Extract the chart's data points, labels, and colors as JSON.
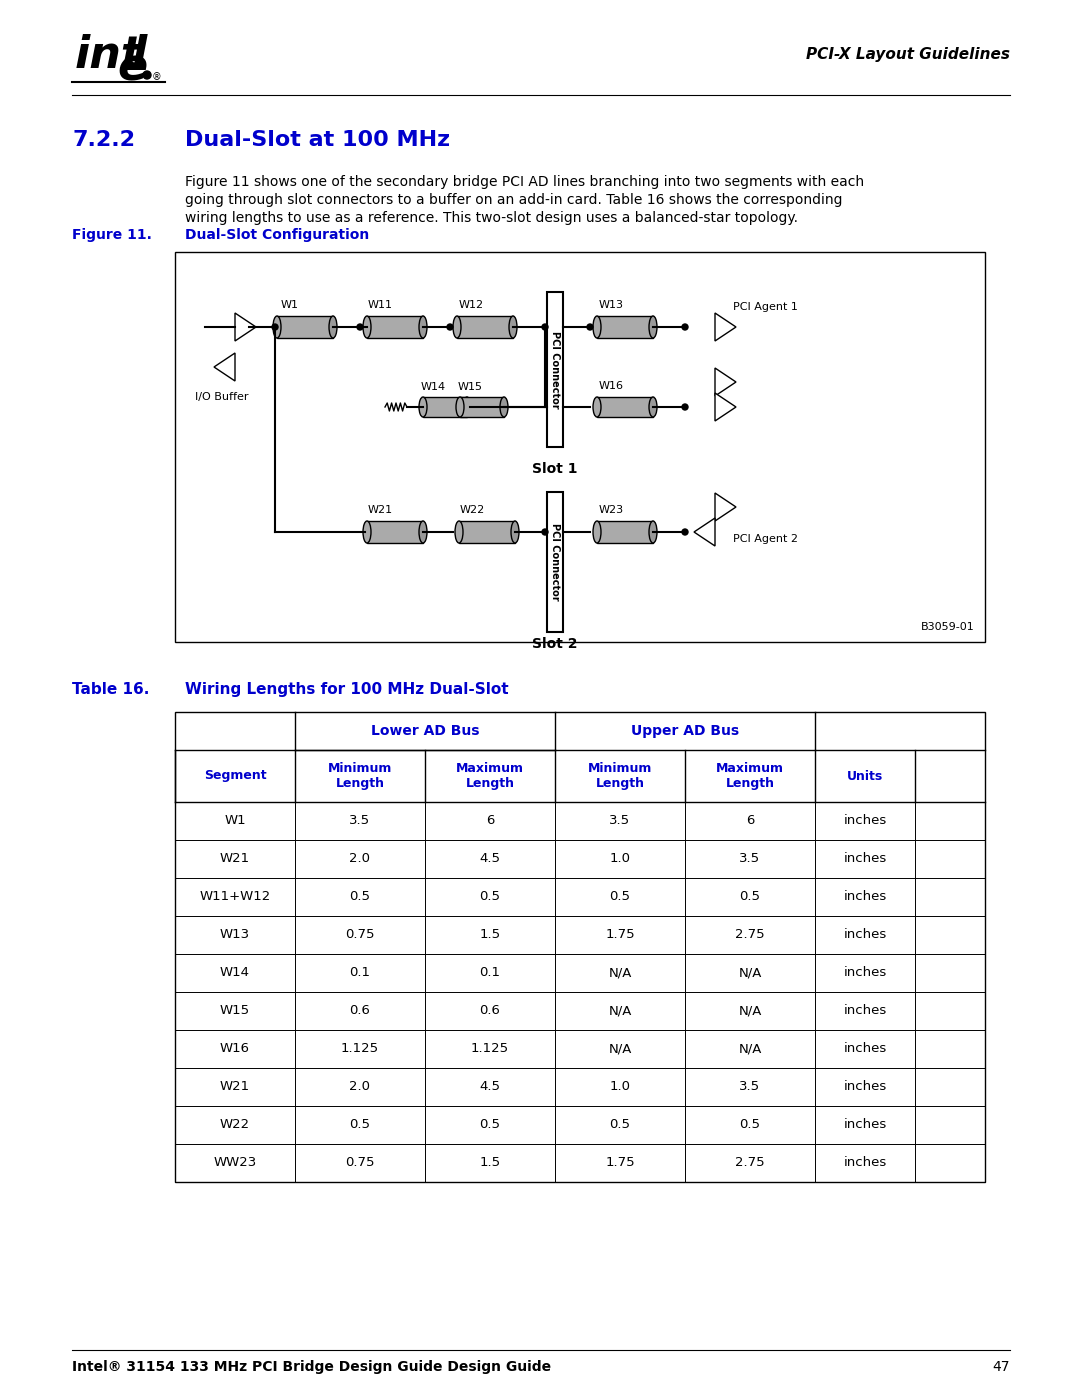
{
  "title_section": "7.2.2",
  "title_text": "Dual-Slot at 100 MHz",
  "header_right": "PCI-X Layout Guidelines",
  "body_text": "Figure 11 shows one of the secondary bridge PCI AD lines branching into two segments with each\ngoing through slot connectors to a buffer on an add-in card. Table 16 shows the corresponding\nwiring lengths to use as a reference. This two-slot design uses a balanced-star topology.",
  "figure_label": "Figure 11.",
  "figure_title": "Dual-Slot Configuration",
  "figure_note": "B3059-01",
  "table_label": "Table 16.",
  "table_title": "Wiring Lengths for 100 MHz Dual-Slot",
  "col_headers": [
    "Segment",
    "Lower AD Bus",
    "Upper AD Bus",
    "Units"
  ],
  "sub_headers": [
    "Minimum\nLength",
    "Maximum\nLength",
    "Minimum\nLength",
    "Maximum\nLength"
  ],
  "rows": [
    [
      "W1",
      "3.5",
      "6",
      "3.5",
      "6",
      "inches"
    ],
    [
      "W21",
      "2.0",
      "4.5",
      "1.0",
      "3.5",
      "inches"
    ],
    [
      "W11+W12",
      "0.5",
      "0.5",
      "0.5",
      "0.5",
      "inches"
    ],
    [
      "W13",
      "0.75",
      "1.5",
      "1.75",
      "2.75",
      "inches"
    ],
    [
      "W14",
      "0.1",
      "0.1",
      "N/A",
      "N/A",
      "inches"
    ],
    [
      "W15",
      "0.6",
      "0.6",
      "N/A",
      "N/A",
      "inches"
    ],
    [
      "W16",
      "1.125",
      "1.125",
      "N/A",
      "N/A",
      "inches"
    ],
    [
      "W21",
      "2.0",
      "4.5",
      "1.0",
      "3.5",
      "inches"
    ],
    [
      "W22",
      "0.5",
      "0.5",
      "0.5",
      "0.5",
      "inches"
    ],
    [
      "WW23",
      "0.75",
      "1.5",
      "1.75",
      "2.75",
      "inches"
    ]
  ],
  "blue_color": "#0000CC",
  "intel_blue": "#0000FF",
  "header_blue": "#0000CC",
  "footer_text": "Intel® 31154 133 MHz PCI Bridge Design Guide Design Guide",
  "footer_page": "47",
  "background": "#FFFFFF"
}
